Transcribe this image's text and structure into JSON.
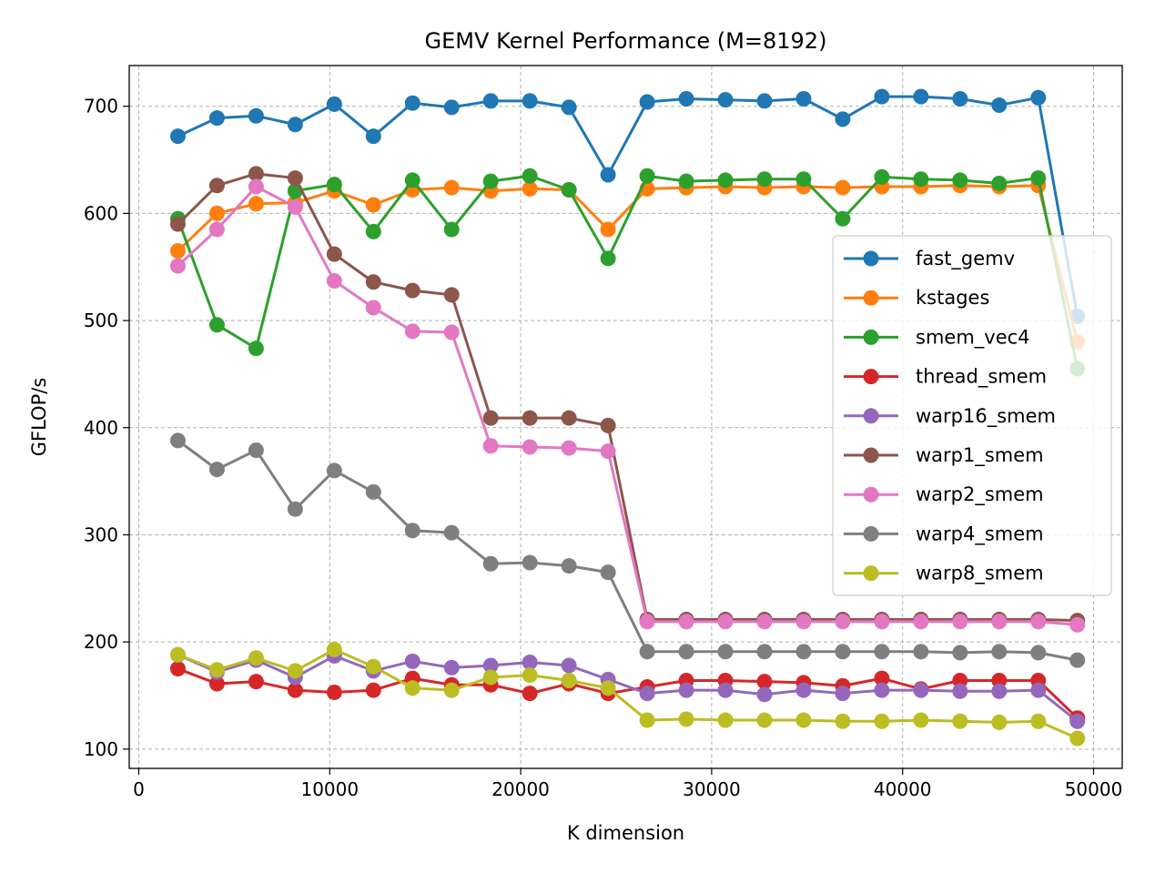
{
  "chart_data": {
    "type": "line",
    "title": "GEMV Kernel Performance (M=8192)",
    "xlabel": "K dimension",
    "ylabel": "GFLOP/s",
    "xlim": [
      -500,
      51500
    ],
    "ylim": [
      82,
      738
    ],
    "xticks": [
      0,
      10000,
      20000,
      30000,
      40000,
      50000
    ],
    "yticks": [
      100,
      200,
      300,
      400,
      500,
      600,
      700
    ],
    "grid": true,
    "legend_position": "center-right",
    "x": [
      2048,
      4096,
      6144,
      8192,
      10240,
      12288,
      14336,
      16384,
      18432,
      20480,
      22528,
      24576,
      26624,
      28672,
      30720,
      32768,
      34816,
      36864,
      38912,
      40960,
      43008,
      45056,
      47104,
      49152
    ],
    "series": [
      {
        "name": "fast_gemv",
        "color": "#1f77b4",
        "values": [
          672,
          689,
          691,
          683,
          702,
          672,
          703,
          699,
          705,
          705,
          699,
          636,
          704,
          707,
          706,
          705,
          707,
          688,
          709,
          709,
          707,
          701,
          708,
          504
        ]
      },
      {
        "name": "kstages",
        "color": "#ff7f0e",
        "values": [
          565,
          600,
          609,
          610,
          621,
          608,
          622,
          624,
          621,
          623,
          622,
          585,
          623,
          624,
          625,
          624,
          625,
          624,
          625,
          625,
          626,
          625,
          626,
          480
        ]
      },
      {
        "name": "smem_vec4",
        "color": "#2ca02c",
        "values": [
          595,
          496,
          474,
          621,
          627,
          583,
          631,
          585,
          630,
          635,
          622,
          558,
          635,
          630,
          631,
          632,
          632,
          595,
          634,
          632,
          631,
          628,
          633,
          455
        ]
      },
      {
        "name": "thread_smem",
        "color": "#d62728",
        "values": [
          175,
          161,
          163,
          155,
          153,
          155,
          166,
          160,
          160,
          152,
          161,
          152,
          158,
          164,
          164,
          163,
          162,
          159,
          166,
          156,
          164,
          164,
          164,
          129
        ]
      },
      {
        "name": "warp16_smem",
        "color": "#9467bd",
        "values": [
          188,
          172,
          183,
          167,
          187,
          173,
          182,
          176,
          178,
          181,
          178,
          165,
          152,
          155,
          155,
          151,
          155,
          152,
          155,
          155,
          154,
          154,
          155,
          126
        ]
      },
      {
        "name": "warp1_smem",
        "color": "#8c564b",
        "values": [
          590,
          626,
          637,
          633,
          562,
          536,
          528,
          524,
          409,
          409,
          409,
          402,
          221,
          221,
          221,
          221,
          221,
          221,
          221,
          221,
          221,
          221,
          221,
          220
        ]
      },
      {
        "name": "warp2_smem",
        "color": "#e377c2",
        "values": [
          551,
          585,
          625,
          606,
          537,
          512,
          490,
          489,
          383,
          382,
          381,
          378,
          219,
          219,
          219,
          219,
          219,
          219,
          219,
          219,
          219,
          219,
          219,
          216
        ]
      },
      {
        "name": "warp4_smem",
        "color": "#7f7f7f",
        "values": [
          388,
          361,
          379,
          324,
          360,
          340,
          304,
          302,
          273,
          274,
          271,
          265,
          191,
          191,
          191,
          191,
          191,
          191,
          191,
          191,
          190,
          191,
          190,
          183
        ]
      },
      {
        "name": "warp8_smem",
        "color": "#bcbd22",
        "values": [
          188,
          174,
          185,
          173,
          193,
          177,
          157,
          155,
          167,
          169,
          164,
          157,
          127,
          128,
          127,
          127,
          127,
          126,
          126,
          127,
          126,
          125,
          126,
          110
        ]
      }
    ]
  }
}
